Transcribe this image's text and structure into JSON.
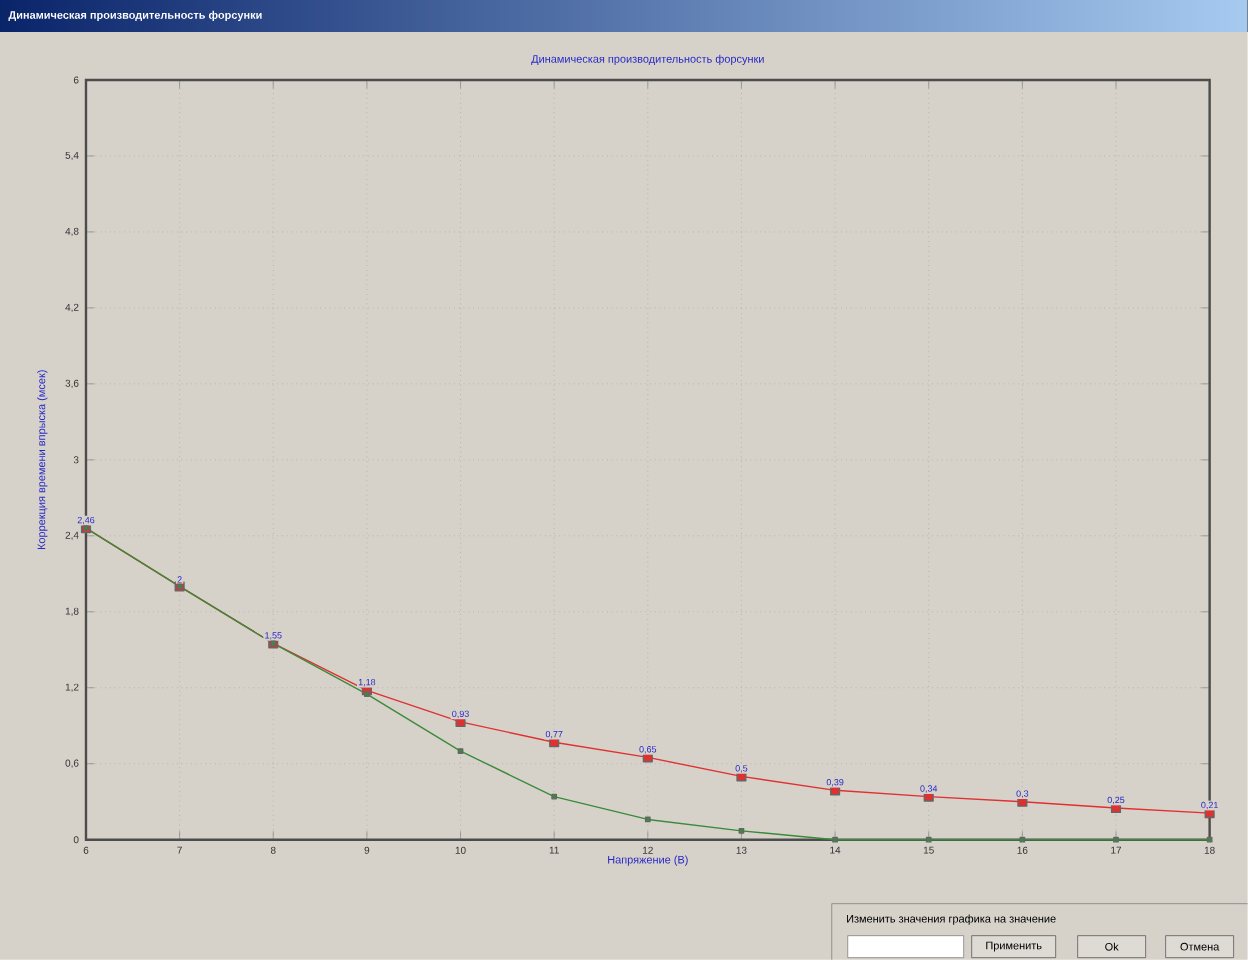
{
  "chart_data": {
    "type": "line",
    "title": "Динамическая производительность форсунки",
    "xlabel": "Напряжение (В)",
    "ylabel": "Коррекция времени впрыска (мсек)",
    "x": [
      6,
      7,
      8,
      9,
      10,
      11,
      12,
      13,
      14,
      15,
      16,
      17,
      18
    ],
    "series": [
      {
        "color": "#3a8a3a",
        "values": [
          2.46,
          2.0,
          1.55,
          1.15,
          0.7,
          0.34,
          0.16,
          0.07,
          0,
          0,
          0,
          0,
          0
        ]
      },
      {
        "color": "#e03030",
        "values": [
          2.46,
          2.0,
          1.55,
          1.18,
          0.93,
          0.77,
          0.65,
          0.5,
          0.39,
          0.34,
          0.3,
          0.25,
          0.21
        ],
        "value_labels": [
          "2,46",
          "2",
          "1,55",
          "1,18",
          "0,93",
          "0,77",
          "0,65",
          "0,5",
          "0,39",
          "0,34",
          "0,3",
          "0,25",
          "0,21"
        ]
      }
    ],
    "xlim": [
      6,
      18
    ],
    "xticks": [
      6,
      7,
      8,
      9,
      10,
      11,
      12,
      13,
      14,
      15,
      16,
      17,
      18
    ],
    "ylim": [
      0,
      6
    ],
    "yticks": [
      0,
      {
        "value": 0.6,
        "label": "0,6"
      },
      {
        "value": 1.2,
        "label": "1,2"
      },
      {
        "value": 1.8,
        "label": "1,8"
      },
      {
        "value": 2.4,
        "label": "2,4"
      },
      3,
      {
        "value": 3.6,
        "label": "3,6"
      },
      {
        "value": 4.2,
        "label": "4,2"
      },
      {
        "value": 4.8,
        "label": "4,8"
      },
      {
        "value": 5.4,
        "label": "5,4"
      },
      6
    ],
    "grid": true,
    "marker": "square",
    "line_style": "solid",
    "annotations": [
      "Динамическая производительность форсунки",
      "Изменить значения графика на значение",
      "Применить",
      "Ok",
      "Отмена"
    ]
  }
}
